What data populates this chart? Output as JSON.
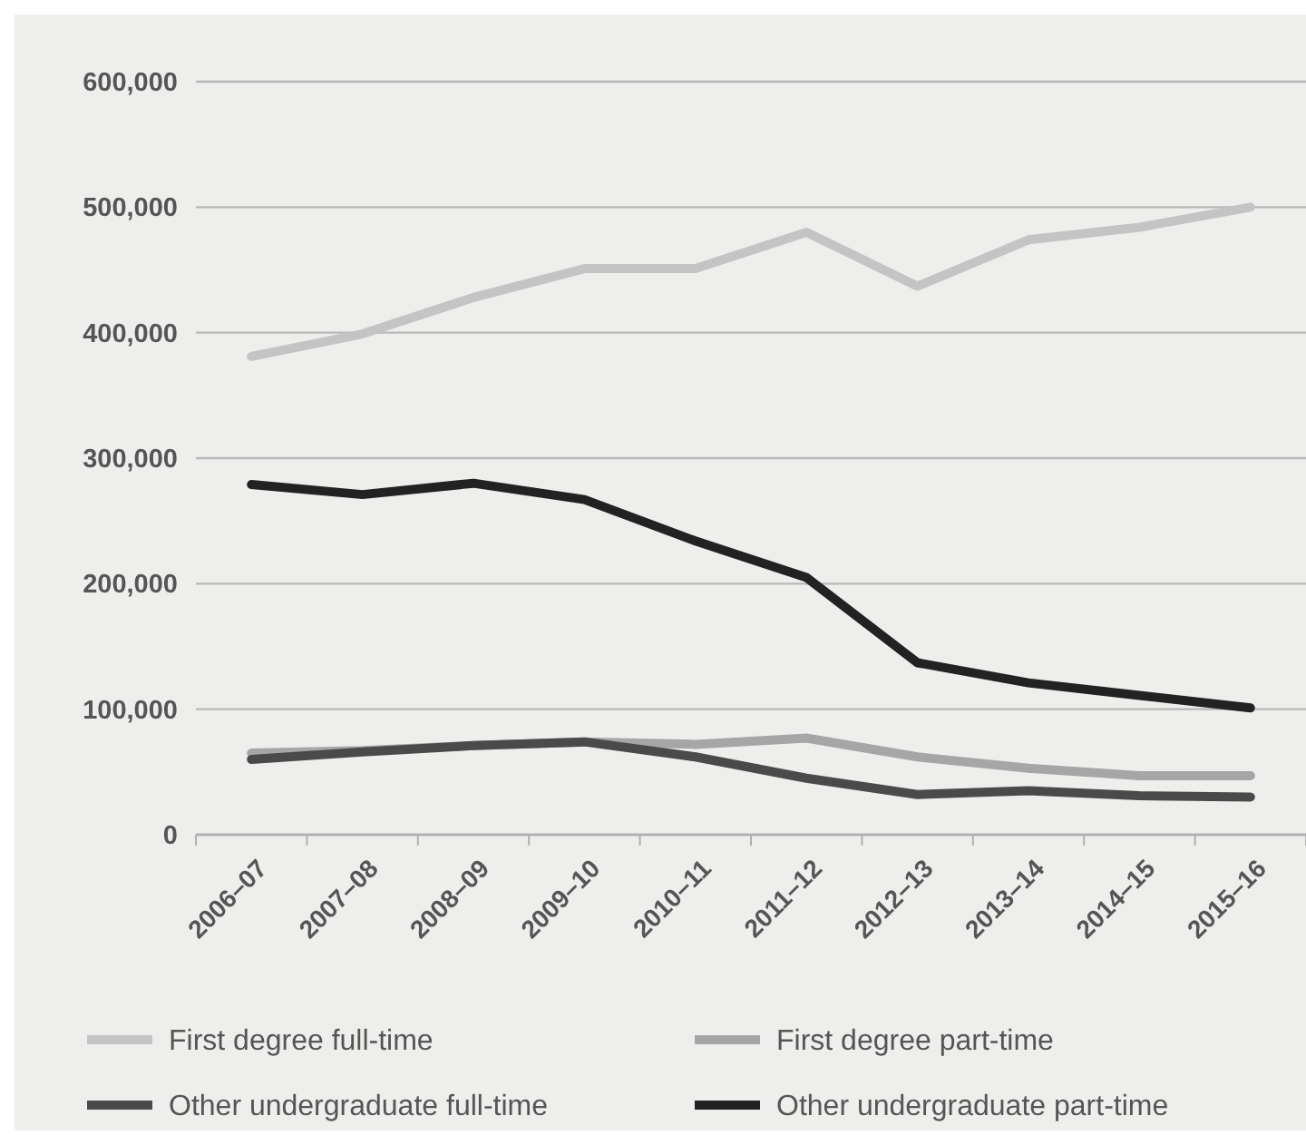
{
  "chart_data": {
    "type": "line",
    "categories": [
      "2006–07",
      "2007–08",
      "2008–09",
      "2009–10",
      "2010–11",
      "2011–12",
      "2012–13",
      "2013–14",
      "2014–15",
      "2015–16"
    ],
    "series": [
      {
        "name": "First degree full-time",
        "color": "#c4c4c4",
        "values": [
          381000,
          399000,
          428000,
          451000,
          451000,
          480000,
          437000,
          474000,
          484000,
          500000
        ]
      },
      {
        "name": "First degree part-time",
        "color": "#a6a6a6",
        "values": [
          65000,
          67000,
          71000,
          74000,
          72000,
          77000,
          62000,
          53000,
          47000,
          47000
        ]
      },
      {
        "name": "Other undergraduate full-time",
        "color": "#4a4a4a",
        "values": [
          60000,
          66000,
          71000,
          74000,
          62000,
          45000,
          32000,
          35000,
          31000,
          30000
        ]
      },
      {
        "name": "Other undergraduate part-time",
        "color": "#222222",
        "values": [
          279000,
          271000,
          280000,
          267000,
          234000,
          205000,
          137000,
          121000,
          111000,
          101000
        ]
      }
    ],
    "ylim": [
      0,
      600000
    ],
    "yticks": [
      {
        "value": 0,
        "label": "0"
      },
      {
        "value": 100000,
        "label": "100,000"
      },
      {
        "value": 200000,
        "label": "200,000"
      },
      {
        "value": 300000,
        "label": "300,000"
      },
      {
        "value": 400000,
        "label": "400,000"
      },
      {
        "value": 500000,
        "label": "500,000"
      },
      {
        "value": 600000,
        "label": "600,000"
      }
    ],
    "grid": "y",
    "legend": "bottom",
    "marker": "none",
    "line_style": "solid"
  }
}
